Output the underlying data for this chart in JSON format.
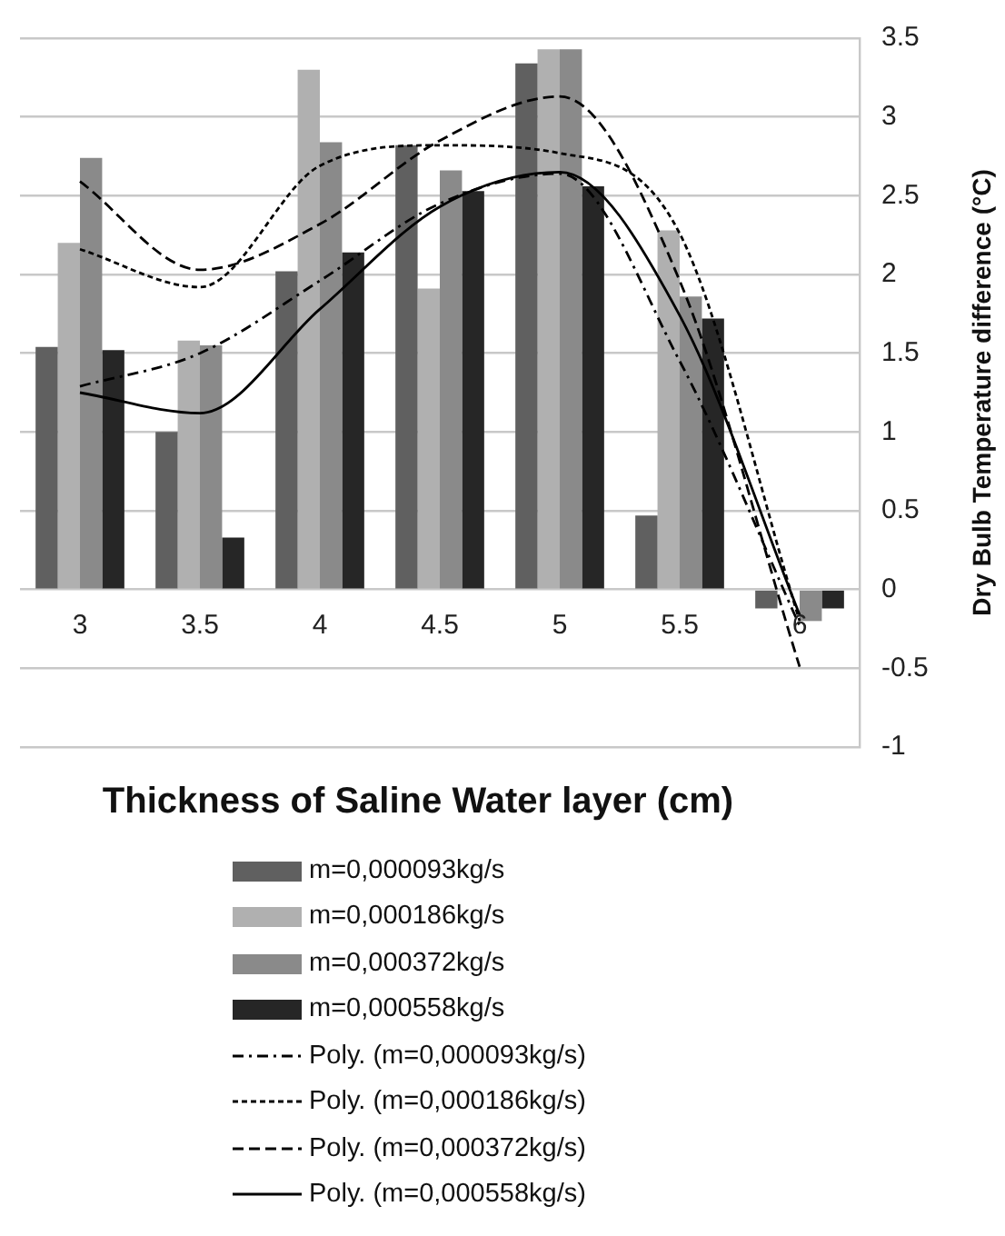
{
  "chart_data": {
    "type": "bar",
    "xlabel": "Thickness of Saline Water layer (cm)",
    "ylabel": "Dry Bulb Temperature difference (°C)",
    "categories": [
      "3",
      "3.5",
      "4",
      "4.5",
      "5",
      "5.5",
      "6"
    ],
    "ylim": [
      -1,
      3.5
    ],
    "yticks": [
      -1,
      -0.5,
      0,
      0.5,
      1,
      1.5,
      2,
      2.5,
      3,
      3.5
    ],
    "grid": "y",
    "legend": "bottom",
    "series": [
      {
        "name": "m=0,000093kg/s",
        "color": "#606060",
        "values": [
          1.54,
          1.0,
          2.02,
          2.82,
          3.34,
          0.47,
          -0.12
        ]
      },
      {
        "name": "m=0,000186kg/s",
        "color": "#b0b0b0",
        "values": [
          2.2,
          1.58,
          3.3,
          1.91,
          3.43,
          2.28,
          0
        ]
      },
      {
        "name": "m=0,000372kg/s",
        "color": "#8a8a8a",
        "values": [
          2.74,
          1.55,
          2.84,
          2.66,
          3.43,
          1.86,
          -0.2
        ]
      },
      {
        "name": "m=0,000558kg/s",
        "color": "#262626",
        "values": [
          1.52,
          0.33,
          2.14,
          2.53,
          2.56,
          1.72,
          -0.12
        ]
      },
      {
        "name": "Poly. (m=0,000093kg/s)",
        "type": "line",
        "line_style": "dashdot",
        "color": "#000000",
        "values": [
          1.29,
          1.5,
          1.96,
          2.45,
          2.64,
          1.45,
          -0.23
        ]
      },
      {
        "name": "Poly. (m=0,000186kg/s)",
        "type": "line",
        "line_style": "dotted",
        "color": "#000000",
        "values": [
          2.16,
          1.92,
          2.69,
          2.82,
          2.77,
          2.26,
          -0.2
        ]
      },
      {
        "name": "Poly. (m=0,000372kg/s)",
        "type": "line",
        "line_style": "dashed",
        "color": "#000000",
        "values": [
          2.59,
          2.03,
          2.32,
          2.85,
          3.13,
          1.96,
          -0.49
        ]
      },
      {
        "name": "Poly. (m=0,000558kg/s)",
        "type": "line",
        "line_style": "solid",
        "color": "#000000",
        "values": [
          1.25,
          1.12,
          1.78,
          2.43,
          2.65,
          1.74,
          -0.16
        ]
      }
    ]
  }
}
